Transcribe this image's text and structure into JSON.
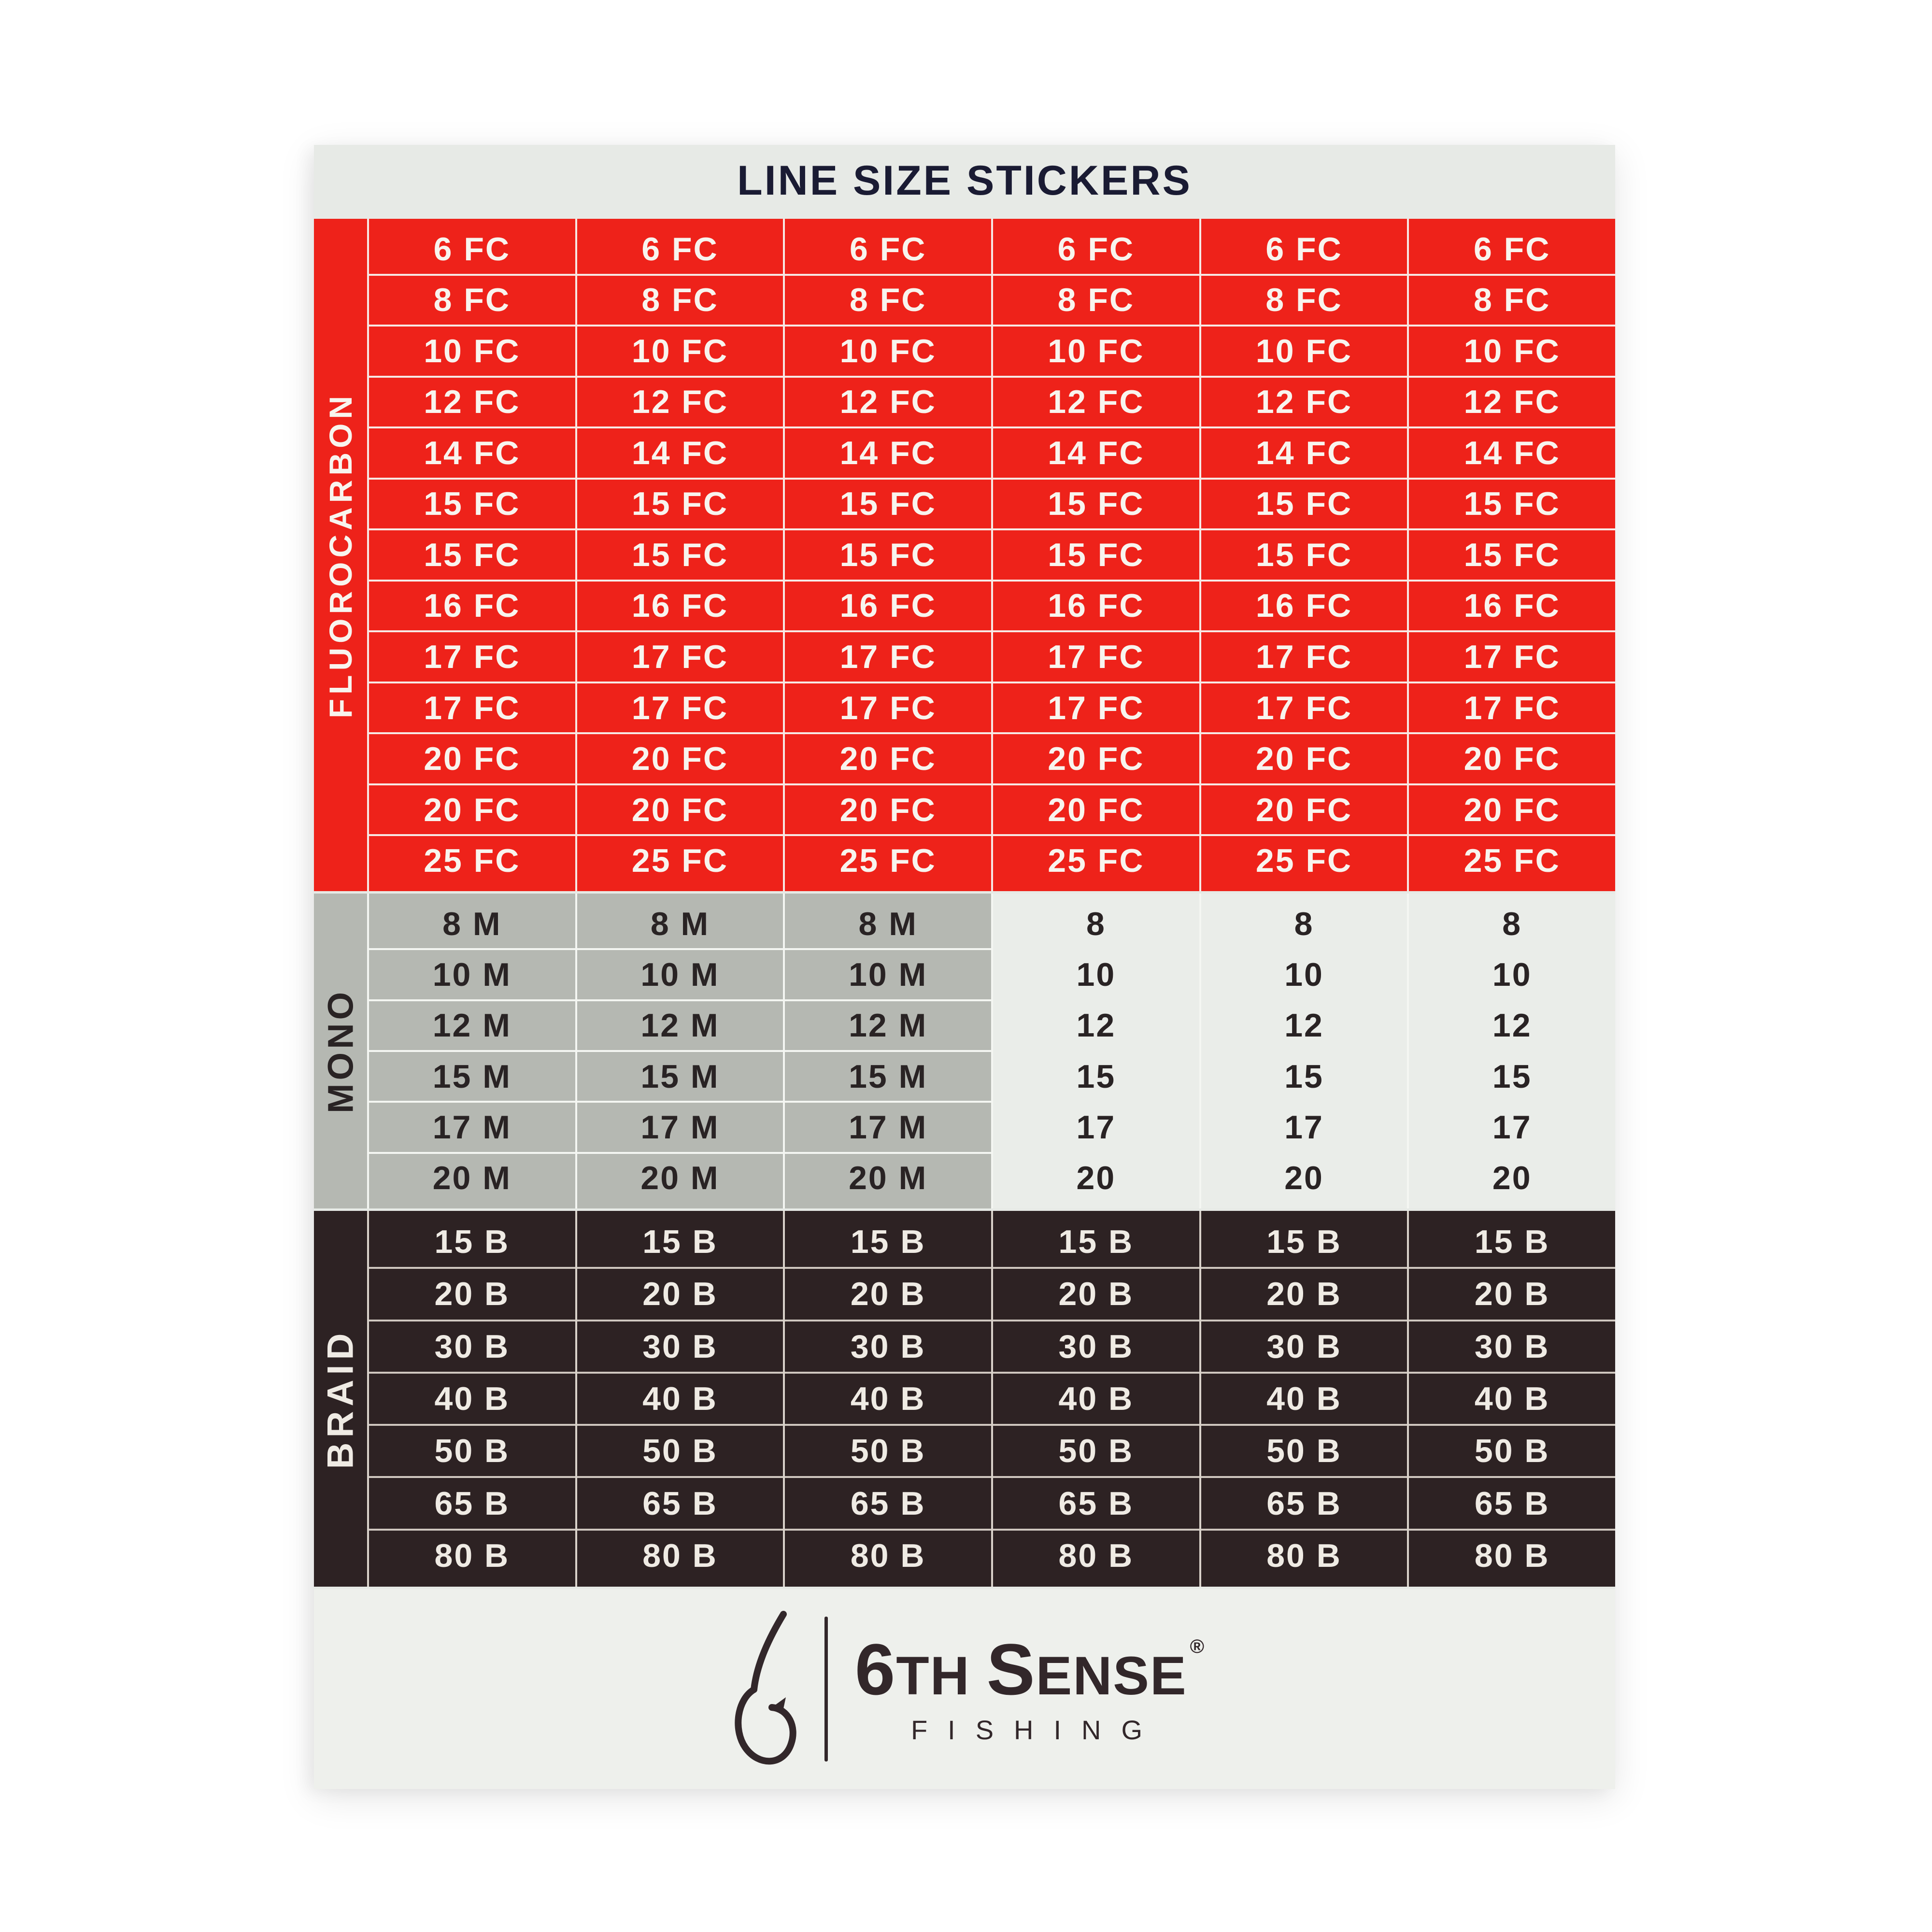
{
  "sheet": {
    "title": "LINE SIZE STICKERS"
  },
  "sections": {
    "fluorocarbon": {
      "label": "FLUOROCARBON",
      "columns": 6,
      "rows": [
        "6 FC",
        "8 FC",
        "10 FC",
        "12 FC",
        "14 FC",
        "15 FC",
        "15 FC",
        "16 FC",
        "17 FC",
        "17 FC",
        "20 FC",
        "20 FC",
        "25 FC"
      ]
    },
    "mono": {
      "label": "MONO",
      "columns": 6,
      "gray_columns": 3,
      "plain_columns": 3,
      "rows_gray": [
        "8 M",
        "10 M",
        "12 M",
        "15 M",
        "17 M",
        "20 M"
      ],
      "rows_plain": [
        "8",
        "10",
        "12",
        "15",
        "17",
        "20"
      ]
    },
    "braid": {
      "label": "BRAID",
      "columns": 6,
      "rows": [
        "15 B",
        "20 B",
        "30 B",
        "40 B",
        "50 B",
        "65 B",
        "80 B"
      ]
    }
  },
  "footer": {
    "brand": {
      "big1": "6",
      "small1": "TH",
      "big2": "S",
      "small2": "ENSE",
      "reg": "®"
    },
    "subtitle": "FISHING"
  },
  "colors": {
    "fluorocarbon_red": "#ee221a",
    "mono_gray": "#b5b8b2",
    "mono_light": "#eaede9",
    "braid_brown": "#2d2223",
    "sheet_bg": "#e7eae6",
    "title_navy": "#1a1b33",
    "logo_brown": "#32272a"
  }
}
